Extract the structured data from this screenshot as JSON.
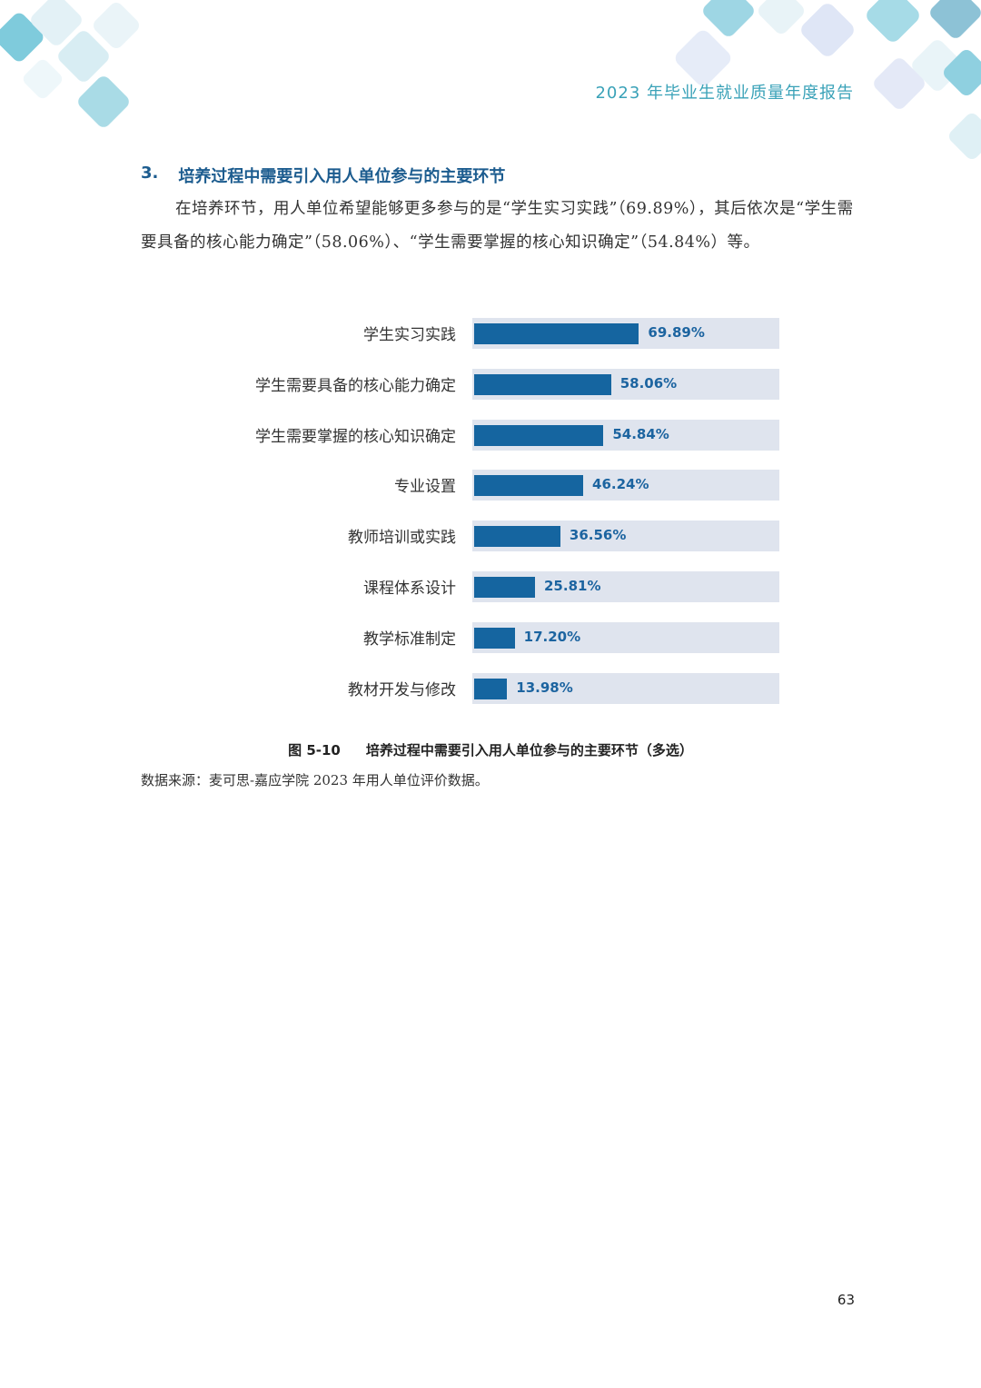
{
  "header": {
    "title": "2023 年毕业生就业质量年度报告"
  },
  "section": {
    "number": "3.",
    "title": "培养过程中需要引入用人单位参与的主要环节",
    "paragraph": "在培养环节，用人单位希望能够更多参与的是“学生实习实践”（69.89%），其后依次是“学生需要具备的核心能力确定”（58.06%）、“学生需要掌握的核心知识确定”（54.84%）等。"
  },
  "chart_data": {
    "type": "bar",
    "orientation": "horizontal",
    "categories": [
      "学生实习实践",
      "学生需要具备的核心能力确定",
      "学生需要掌握的核心知识确定",
      "专业设置",
      "教师培训或实践",
      "课程体系设计",
      "教学标准制定",
      "教材开发与修改"
    ],
    "values": [
      69.89,
      58.06,
      54.84,
      46.24,
      36.56,
      25.81,
      17.2,
      13.98
    ],
    "value_labels": [
      "69.89%",
      "58.06%",
      "54.84%",
      "46.24%",
      "36.56%",
      "25.81%",
      "17.20%",
      "13.98%"
    ],
    "xlim": [
      0,
      130
    ],
    "grid": false,
    "bar_color": "#1565a0",
    "track_color": "#dfe4ee",
    "label_color": "#1c64a0"
  },
  "figure": {
    "number": "图 5-10",
    "caption": "培养过程中需要引入用人单位参与的主要环节（多选）"
  },
  "source": "数据来源：麦可思-嘉应学院 2023 年用人单位评价数据。",
  "page_number": "63",
  "colors": {
    "accent": "#3aa2b8",
    "heading": "#1c5c8f"
  }
}
